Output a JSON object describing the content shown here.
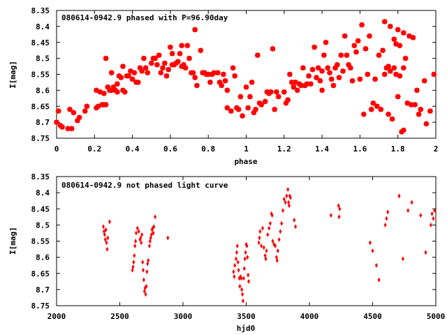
{
  "chart_data": [
    {
      "type": "scatter",
      "title": "080614-0942.9 phased with P=96.90day",
      "xlabel": "phase",
      "ylabel": "I[mag]",
      "xlim": [
        0,
        2
      ],
      "ylim": [
        8.35,
        8.75
      ],
      "y_inverted": true,
      "xticks": [
        "0",
        "0.2",
        "0.4",
        "0.6",
        "0.8",
        "1",
        "1.2",
        "1.4",
        "1.6",
        "1.8",
        "2"
      ],
      "yticks": [
        "8.35",
        "8.4",
        "8.45",
        "8.5",
        "8.55",
        "8.6",
        "8.65",
        "8.7",
        "8.75"
      ],
      "marker": "star",
      "color": "#ff0000",
      "grid": false,
      "points": [
        [
          0.0,
          8.7
        ],
        [
          0.01,
          8.665
        ],
        [
          0.02,
          8.71
        ],
        [
          0.03,
          8.715
        ],
        [
          0.06,
          8.72
        ],
        [
          0.07,
          8.66
        ],
        [
          0.08,
          8.72
        ],
        [
          0.09,
          8.67
        ],
        [
          0.11,
          8.695
        ],
        [
          0.12,
          8.685
        ],
        [
          0.15,
          8.665
        ],
        [
          0.16,
          8.65
        ],
        [
          0.21,
          8.6
        ],
        [
          0.21,
          8.655
        ],
        [
          0.22,
          8.65
        ],
        [
          0.23,
          8.605
        ],
        [
          0.24,
          8.645
        ],
        [
          0.25,
          8.645
        ],
        [
          0.25,
          8.61
        ],
        [
          0.26,
          8.645
        ],
        [
          0.26,
          8.5
        ],
        [
          0.27,
          8.59
        ],
        [
          0.28,
          8.6
        ],
        [
          0.29,
          8.545
        ],
        [
          0.29,
          8.6
        ],
        [
          0.3,
          8.59
        ],
        [
          0.31,
          8.6
        ],
        [
          0.32,
          8.605
        ],
        [
          0.32,
          8.58
        ],
        [
          0.33,
          8.555
        ],
        [
          0.34,
          8.56
        ],
        [
          0.35,
          8.525
        ],
        [
          0.35,
          8.6
        ],
        [
          0.36,
          8.605
        ],
        [
          0.37,
          8.555
        ],
        [
          0.38,
          8.555
        ],
        [
          0.39,
          8.54
        ],
        [
          0.4,
          8.565
        ],
        [
          0.41,
          8.545
        ],
        [
          0.42,
          8.575
        ],
        [
          0.43,
          8.575
        ],
        [
          0.44,
          8.53
        ],
        [
          0.45,
          8.54
        ],
        [
          0.46,
          8.5
        ],
        [
          0.47,
          8.53
        ],
        [
          0.48,
          8.545
        ],
        [
          0.5,
          8.515
        ],
        [
          0.51,
          8.5
        ],
        [
          0.52,
          8.5
        ],
        [
          0.53,
          8.52
        ],
        [
          0.54,
          8.49
        ],
        [
          0.55,
          8.545
        ],
        [
          0.56,
          8.53
        ],
        [
          0.57,
          8.515
        ],
        [
          0.58,
          8.555
        ],
        [
          0.59,
          8.535
        ],
        [
          0.6,
          8.465
        ],
        [
          0.61,
          8.485
        ],
        [
          0.61,
          8.52
        ],
        [
          0.62,
          8.52
        ],
        [
          0.63,
          8.515
        ],
        [
          0.64,
          8.51
        ],
        [
          0.65,
          8.485
        ],
        [
          0.66,
          8.525
        ],
        [
          0.66,
          8.46
        ],
        [
          0.67,
          8.52
        ],
        [
          0.68,
          8.53
        ],
        [
          0.69,
          8.46
        ],
        [
          0.7,
          8.5
        ],
        [
          0.71,
          8.545
        ],
        [
          0.72,
          8.545
        ],
        [
          0.73,
          8.56
        ],
        [
          0.74,
          8.585
        ],
        [
          0.73,
          8.41
        ],
        [
          0.76,
          8.475
        ],
        [
          0.77,
          8.545
        ],
        [
          0.78,
          8.545
        ],
        [
          0.79,
          8.55
        ],
        [
          0.8,
          8.55
        ],
        [
          0.81,
          8.575
        ],
        [
          0.82,
          8.55
        ],
        [
          0.83,
          8.545
        ],
        [
          0.85,
          8.545
        ],
        [
          0.86,
          8.575
        ],
        [
          0.87,
          8.585
        ],
        [
          0.88,
          8.55
        ],
        [
          0.89,
          8.57
        ],
        [
          0.9,
          8.6
        ],
        [
          0.9,
          8.655
        ],
        [
          0.92,
          8.665
        ],
        [
          0.93,
          8.53
        ],
        [
          0.94,
          8.555
        ],
        [
          0.95,
          8.655
        ],
        [
          0.96,
          8.66
        ],
        [
          0.97,
          8.62
        ],
        [
          0.98,
          8.68
        ],
        [
          1.0,
          8.59
        ],
        [
          1.01,
          8.655
        ],
        [
          1.02,
          8.62
        ],
        [
          1.03,
          8.575
        ],
        [
          1.04,
          8.67
        ],
        [
          1.05,
          8.66
        ],
        [
          1.06,
          8.49
        ],
        [
          1.07,
          8.64
        ],
        [
          1.08,
          8.645
        ],
        [
          1.1,
          8.635
        ],
        [
          1.11,
          8.605
        ],
        [
          1.12,
          8.61
        ],
        [
          1.13,
          8.605
        ],
        [
          1.14,
          8.47
        ],
        [
          1.15,
          8.66
        ],
        [
          1.16,
          8.605
        ],
        [
          1.17,
          8.62
        ],
        [
          1.2,
          8.605
        ],
        [
          1.21,
          8.64
        ],
        [
          1.22,
          8.63
        ],
        [
          1.23,
          8.55
        ],
        [
          1.24,
          8.575
        ],
        [
          1.25,
          8.59
        ],
        [
          1.26,
          8.575
        ],
        [
          1.27,
          8.6
        ],
        [
          1.28,
          8.58
        ],
        [
          1.29,
          8.585
        ],
        [
          1.3,
          8.53
        ],
        [
          1.31,
          8.585
        ],
        [
          1.32,
          8.58
        ],
        [
          1.33,
          8.555
        ],
        [
          1.34,
          8.58
        ],
        [
          1.35,
          8.535
        ],
        [
          1.36,
          8.465
        ],
        [
          1.37,
          8.56
        ],
        [
          1.38,
          8.53
        ],
        [
          1.39,
          8.57
        ],
        [
          1.4,
          8.54
        ],
        [
          1.4,
          8.6
        ],
        [
          1.41,
          8.49
        ],
        [
          1.42,
          8.45
        ],
        [
          1.43,
          8.53
        ],
        [
          1.44,
          8.545
        ],
        [
          1.45,
          8.565
        ],
        [
          1.46,
          8.585
        ],
        [
          1.47,
          8.53
        ],
        [
          1.48,
          8.52
        ],
        [
          1.49,
          8.56
        ],
        [
          1.5,
          8.49
        ],
        [
          1.51,
          8.54
        ],
        [
          1.52,
          8.43
        ],
        [
          1.53,
          8.49
        ],
        [
          1.54,
          8.52
        ],
        [
          1.55,
          8.53
        ],
        [
          1.56,
          8.57
        ],
        [
          1.57,
          8.46
        ],
        [
          1.58,
          8.48
        ],
        [
          1.59,
          8.445
        ],
        [
          1.6,
          8.565
        ],
        [
          1.61,
          8.395
        ],
        [
          1.62,
          8.675
        ],
        [
          1.63,
          8.47
        ],
        [
          1.64,
          8.55
        ],
        [
          1.65,
          8.43
        ],
        [
          1.66,
          8.66
        ],
        [
          1.67,
          8.64
        ],
        [
          1.68,
          8.565
        ],
        [
          1.69,
          8.65
        ],
        [
          1.7,
          8.49
        ],
        [
          1.71,
          8.66
        ],
        [
          1.72,
          8.475
        ],
        [
          1.73,
          8.55
        ],
        [
          1.73,
          8.385
        ],
        [
          1.74,
          8.53
        ],
        [
          1.75,
          8.675
        ],
        [
          1.76,
          8.4
        ],
        [
          1.76,
          8.54
        ],
        [
          1.77,
          8.69
        ],
        [
          1.78,
          8.44
        ],
        [
          1.78,
          8.53
        ],
        [
          1.79,
          8.455
        ],
        [
          1.79,
          8.55
        ],
        [
          1.8,
          8.41
        ],
        [
          1.8,
          8.62
        ],
        [
          1.81,
          8.46
        ],
        [
          1.81,
          8.555
        ],
        [
          1.82,
          8.73
        ],
        [
          1.83,
          8.42
        ],
        [
          1.83,
          8.725
        ],
        [
          1.84,
          8.5
        ],
        [
          1.85,
          8.64
        ],
        [
          1.86,
          8.43
        ],
        [
          1.87,
          8.645
        ],
        [
          1.88,
          8.435
        ],
        [
          1.89,
          8.645
        ],
        [
          1.9,
          8.6
        ],
        [
          1.91,
          8.675
        ],
        [
          1.92,
          8.66
        ],
        [
          1.94,
          8.57
        ],
        [
          1.95,
          8.705
        ],
        [
          1.97,
          8.665
        ],
        [
          1.99,
          8.55
        ],
        [
          1.83,
          8.53
        ],
        [
          1.75,
          8.525
        ]
      ]
    },
    {
      "type": "scatter",
      "title": "080614-0942.9 not phased light curve",
      "xlabel": "hjd0",
      "ylabel": "I[mag]",
      "xlim": [
        2000,
        5000
      ],
      "ylim": [
        8.35,
        8.75
      ],
      "y_inverted": true,
      "xticks": [
        "2000",
        "2500",
        "3000",
        "3500",
        "4000",
        "4500",
        "5000"
      ],
      "yticks": [
        "8.35",
        "8.4",
        "8.45",
        "8.5",
        "8.55",
        "8.6",
        "8.65",
        "8.7",
        "8.75"
      ],
      "marker": "diamond",
      "color": "#ff0000",
      "grid": false,
      "points": [
        [
          2370,
          8.505
        ],
        [
          2375,
          8.52
        ],
        [
          2380,
          8.53
        ],
        [
          2385,
          8.545
        ],
        [
          2390,
          8.515
        ],
        [
          2395,
          8.555
        ],
        [
          2400,
          8.575
        ],
        [
          2405,
          8.54
        ],
        [
          2420,
          8.49
        ],
        [
          2600,
          8.64
        ],
        [
          2605,
          8.63
        ],
        [
          2610,
          8.615
        ],
        [
          2615,
          8.595
        ],
        [
          2620,
          8.565
        ],
        [
          2625,
          8.55
        ],
        [
          2630,
          8.525
        ],
        [
          2640,
          8.51
        ],
        [
          2650,
          8.52
        ],
        [
          2660,
          8.545
        ],
        [
          2665,
          8.54
        ],
        [
          2670,
          8.555
        ],
        [
          2675,
          8.53
        ],
        [
          2680,
          8.615
        ],
        [
          2685,
          8.64
        ],
        [
          2690,
          8.67
        ],
        [
          2695,
          8.705
        ],
        [
          2700,
          8.695
        ],
        [
          2705,
          8.715
        ],
        [
          2710,
          8.69
        ],
        [
          2715,
          8.645
        ],
        [
          2720,
          8.62
        ],
        [
          2725,
          8.61
        ],
        [
          2735,
          8.565
        ],
        [
          2740,
          8.55
        ],
        [
          2745,
          8.54
        ],
        [
          2750,
          8.53
        ],
        [
          2755,
          8.515
        ],
        [
          2760,
          8.51
        ],
        [
          2765,
          8.525
        ],
        [
          2770,
          8.505
        ],
        [
          2780,
          8.475
        ],
        [
          2880,
          8.54
        ],
        [
          3400,
          8.645
        ],
        [
          3405,
          8.66
        ],
        [
          3410,
          8.625
        ],
        [
          3420,
          8.605
        ],
        [
          3425,
          8.585
        ],
        [
          3430,
          8.565
        ],
        [
          3435,
          8.615
        ],
        [
          3440,
          8.64
        ],
        [
          3445,
          8.665
        ],
        [
          3450,
          8.69
        ],
        [
          3455,
          8.66
        ],
        [
          3460,
          8.665
        ],
        [
          3465,
          8.7
        ],
        [
          3470,
          8.715
        ],
        [
          3475,
          8.735
        ],
        [
          3480,
          8.665
        ],
        [
          3485,
          8.635
        ],
        [
          3490,
          8.605
        ],
        [
          3495,
          8.585
        ],
        [
          3500,
          8.56
        ],
        [
          3505,
          8.565
        ],
        [
          3510,
          8.6
        ],
        [
          3515,
          8.655
        ],
        [
          3520,
          8.675
        ],
        [
          3600,
          8.555
        ],
        [
          3605,
          8.54
        ],
        [
          3610,
          8.52
        ],
        [
          3620,
          8.565
        ],
        [
          3630,
          8.51
        ],
        [
          3640,
          8.57
        ],
        [
          3650,
          8.595
        ],
        [
          3655,
          8.605
        ],
        [
          3660,
          8.58
        ],
        [
          3670,
          8.53
        ],
        [
          3680,
          8.51
        ],
        [
          3690,
          8.495
        ],
        [
          3700,
          8.465
        ],
        [
          3705,
          8.47
        ],
        [
          3710,
          8.55
        ],
        [
          3720,
          8.56
        ],
        [
          3730,
          8.565
        ],
        [
          3740,
          8.6
        ],
        [
          3745,
          8.61
        ],
        [
          3750,
          8.58
        ],
        [
          3760,
          8.545
        ],
        [
          3770,
          8.52
        ],
        [
          3780,
          8.495
        ],
        [
          3790,
          8.455
        ],
        [
          3800,
          8.42
        ],
        [
          3810,
          8.43
        ],
        [
          3820,
          8.41
        ],
        [
          3830,
          8.39
        ],
        [
          3835,
          8.43
        ],
        [
          3840,
          8.44
        ],
        [
          3845,
          8.41
        ],
        [
          3850,
          8.415
        ],
        [
          3880,
          8.485
        ],
        [
          3890,
          8.505
        ],
        [
          4170,
          8.47
        ],
        [
          4230,
          8.44
        ],
        [
          4235,
          8.475
        ],
        [
          4240,
          8.45
        ],
        [
          4480,
          8.555
        ],
        [
          4500,
          8.58
        ],
        [
          4530,
          8.625
        ],
        [
          4550,
          8.67
        ],
        [
          4600,
          8.5
        ],
        [
          4610,
          8.48
        ],
        [
          4620,
          8.46
        ],
        [
          4710,
          8.41
        ],
        [
          4740,
          8.605
        ],
        [
          4780,
          8.455
        ],
        [
          4810,
          8.43
        ],
        [
          4880,
          8.47
        ],
        [
          4920,
          8.585
        ],
        [
          4960,
          8.5
        ],
        [
          4970,
          8.465
        ],
        [
          4980,
          8.48
        ],
        [
          4990,
          8.455
        ]
      ]
    }
  ]
}
